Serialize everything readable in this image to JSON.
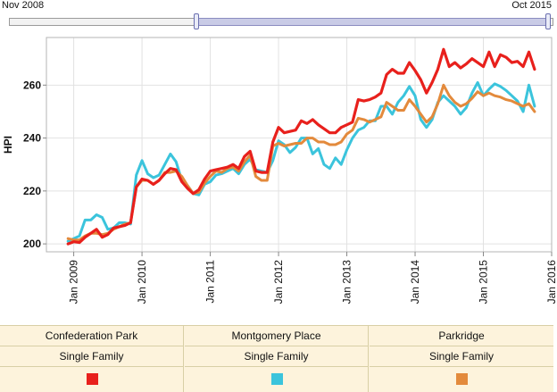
{
  "range": {
    "start_label": "Nov 2008",
    "end_label": "Oct 2015"
  },
  "legend": [
    {
      "name": "Confederation Park",
      "type": "Single Family",
      "color": "#e8201c"
    },
    {
      "name": "Montgomery Place",
      "type": "Single Family",
      "color": "#3bc4dc"
    },
    {
      "name": "Parkridge",
      "type": "Single Family",
      "color": "#e38a3c"
    }
  ],
  "chart_data": {
    "type": "line",
    "ylabel": "HPI",
    "xlabel": "",
    "ylim": [
      197,
      278
    ],
    "yticks": [
      200,
      220,
      240,
      260
    ],
    "xlim": [
      2008.6,
      2016.0
    ],
    "xticks": [
      {
        "value": 2009.0,
        "label": "Jan 2009"
      },
      {
        "value": 2010.0,
        "label": "Jan 2010"
      },
      {
        "value": 2011.0,
        "label": "Jan 2011"
      },
      {
        "value": 2012.0,
        "label": "Jan 2012"
      },
      {
        "value": 2013.0,
        "label": "Jan 2013"
      },
      {
        "value": 2014.0,
        "label": "Jan 2014"
      },
      {
        "value": 2015.0,
        "label": "Jan 2015"
      },
      {
        "value": 2016.0,
        "label": "Jan 2016"
      }
    ],
    "x_start": 2008.9167,
    "x_step": 0.08333,
    "series": [
      {
        "name": "Confederation Park",
        "color": "#e8201c",
        "values": [
          200.0,
          200.8,
          200.5,
          202.5,
          204.0,
          205.5,
          202.5,
          203.5,
          206.0,
          206.5,
          207.0,
          208.0,
          221.5,
          224.5,
          224.0,
          222.5,
          224.0,
          226.5,
          228.5,
          228.0,
          223.5,
          221.0,
          219.0,
          220.5,
          224.5,
          227.5,
          228.0,
          228.5,
          229.0,
          230.0,
          228.5,
          233.0,
          235.0,
          227.5,
          227.0,
          227.0,
          238.5,
          244.0,
          242.0,
          242.5,
          243.0,
          246.5,
          245.5,
          247.0,
          245.0,
          243.5,
          242.0,
          242.0,
          244.0,
          245.0,
          246.0,
          254.5,
          254.0,
          254.5,
          255.5,
          257.0,
          264.0,
          266.0,
          264.5,
          264.5,
          268.5,
          265.5,
          262.0,
          257.0,
          261.0,
          266.0,
          273.5,
          267.0,
          268.5,
          266.5,
          268.0,
          270.0,
          268.5,
          267.0,
          272.5,
          267.0,
          271.5,
          270.5,
          268.5,
          269.0,
          267.0,
          272.5,
          266.0
        ]
      },
      {
        "name": "Montgomery Place",
        "color": "#3bc4dc",
        "values": [
          201.0,
          202.0,
          203.0,
          209.0,
          209.0,
          211.0,
          210.0,
          205.5,
          206.0,
          208.0,
          208.0,
          207.5,
          226.0,
          231.5,
          226.5,
          225.0,
          226.0,
          230.0,
          234.0,
          231.0,
          224.0,
          222.0,
          219.0,
          218.5,
          222.5,
          223.5,
          226.0,
          226.5,
          227.5,
          228.5,
          226.5,
          230.0,
          232.0,
          228.0,
          227.5,
          227.0,
          231.5,
          239.0,
          237.5,
          234.5,
          236.5,
          240.0,
          240.0,
          234.0,
          236.0,
          230.0,
          228.5,
          232.5,
          230.0,
          235.5,
          240.0,
          243.0,
          244.0,
          246.5,
          246.5,
          252.0,
          252.0,
          249.0,
          253.5,
          256.0,
          259.5,
          256.0,
          247.0,
          244.0,
          247.0,
          253.5,
          256.0,
          254.0,
          252.0,
          249.0,
          251.5,
          257.0,
          261.0,
          256.0,
          258.5,
          260.5,
          259.5,
          258.0,
          256.0,
          254.0,
          250.0,
          260.0,
          252.0
        ]
      },
      {
        "name": "Parkridge",
        "color": "#e38a3c",
        "values": [
          202.0,
          201.5,
          201.5,
          203.0,
          204.0,
          204.0,
          203.5,
          204.0,
          205.5,
          206.5,
          207.5,
          208.0,
          221.5,
          224.0,
          224.0,
          222.5,
          224.0,
          227.0,
          227.0,
          227.5,
          225.5,
          222.0,
          219.0,
          219.5,
          223.0,
          225.5,
          227.5,
          227.0,
          228.5,
          229.0,
          227.5,
          231.0,
          233.5,
          225.5,
          224.0,
          224.0,
          237.0,
          238.0,
          237.0,
          237.5,
          238.0,
          238.0,
          240.0,
          240.0,
          238.5,
          238.5,
          237.5,
          237.5,
          238.5,
          241.5,
          243.0,
          247.5,
          247.0,
          246.0,
          247.0,
          248.0,
          253.5,
          252.0,
          250.5,
          250.5,
          254.5,
          252.0,
          249.0,
          246.0,
          248.0,
          253.0,
          260.0,
          256.0,
          253.5,
          252.0,
          253.0,
          255.0,
          257.5,
          256.0,
          257.0,
          256.0,
          255.5,
          254.5,
          254.0,
          253.0,
          252.0,
          253.0,
          250.0
        ]
      }
    ]
  }
}
